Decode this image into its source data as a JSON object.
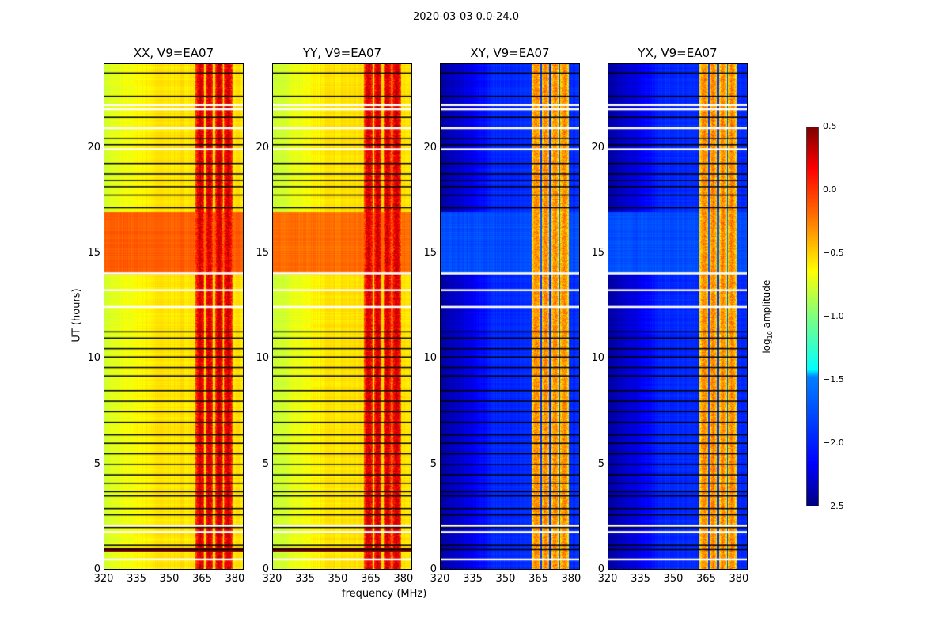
{
  "suptitle": "2020-03-03 0.0-24.0",
  "chart_data": {
    "type": "heatmap",
    "title": "2020-03-03 0.0-24.0",
    "xlabel": "frequency (MHz)",
    "ylabel": "UT (hours)",
    "xlim": [
      320,
      384
    ],
    "ylim": [
      0,
      24
    ],
    "xticks": [
      "320",
      "335",
      "350",
      "365",
      "380"
    ],
    "yticks": [
      "0",
      "5",
      "10",
      "15",
      "20"
    ],
    "colormap": "jet",
    "colorbar": {
      "label": "log10 amplitude",
      "label_main": "log",
      "label_sub": "10",
      "label_rest": " amplitude",
      "range": [
        -2.5,
        0.5
      ],
      "ticks": [
        "0.5",
        "0.0",
        "−0.5",
        "−1.0",
        "−1.5",
        "−2.0",
        "−2.5"
      ]
    },
    "rfi_bands_mhz": [
      [
        362,
        366
      ],
      [
        366.5,
        370
      ],
      [
        371,
        374.5
      ],
      [
        375,
        379
      ]
    ],
    "flagged_black_hours": [
      0.95,
      1.15,
      2.0,
      2.6,
      2.9,
      3.5,
      3.7,
      4.1,
      4.5,
      5.0,
      5.5,
      6.0,
      6.4,
      7.0,
      7.5,
      8.0,
      8.5,
      9.2,
      9.6,
      10.1,
      10.5,
      11.0,
      11.3,
      17.2,
      17.8,
      18.2,
      18.5,
      18.8,
      19.3,
      20.2,
      20.5,
      21.5,
      22.5,
      23.6
    ],
    "flagged_white_hours": [
      0.5,
      1.8,
      2.1,
      12.5,
      13.3,
      14.1,
      20.0,
      21.0,
      21.9,
      22.1
    ],
    "panels": [
      {
        "title": "XX, V9=EA07",
        "background_low": -0.75,
        "background_high": -0.55,
        "band_level": -0.1,
        "active_hours": [
          14,
          17
        ],
        "active_level": -0.15
      },
      {
        "title": "YY, V9=EA07",
        "background_low": -0.8,
        "background_high": -0.55,
        "band_level": -0.1,
        "active_hours": [
          14,
          17
        ],
        "active_level": -0.2
      },
      {
        "title": "XY, V9=EA07",
        "background_low": -2.4,
        "background_high": -2.0,
        "band_level": -0.6,
        "active_hours": [
          14,
          17
        ],
        "active_level": -1.9
      },
      {
        "title": "YX, V9=EA07",
        "background_low": -2.4,
        "background_high": -2.0,
        "band_level": -0.6,
        "active_hours": [
          14,
          17
        ],
        "active_level": -1.9
      }
    ]
  }
}
